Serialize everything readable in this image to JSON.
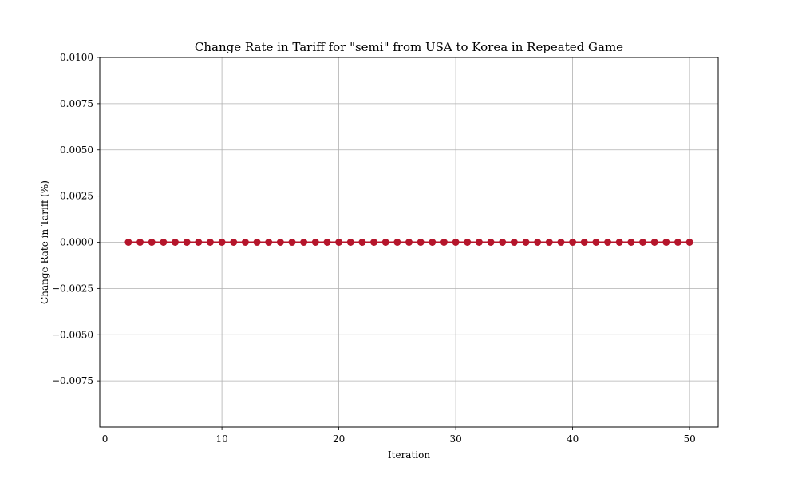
{
  "chart_data": {
    "type": "line",
    "title": "Change Rate in Tariff for \"semi\" from USA to Korea in Repeated Game",
    "xlabel": "Iteration",
    "ylabel": "Change Rate in Tariff (%)",
    "xlim": [
      -0.45,
      52.45
    ],
    "ylim": [
      -0.01,
      0.01
    ],
    "x_ticks": [
      0,
      10,
      20,
      30,
      40,
      50
    ],
    "x_tick_labels": [
      "0",
      "10",
      "20",
      "30",
      "40",
      "50"
    ],
    "y_ticks": [
      0.01,
      0.0075,
      0.005,
      0.0025,
      0.0,
      -0.0025,
      -0.005,
      -0.0075
    ],
    "y_tick_labels": [
      "0.0100",
      "0.0075",
      "0.0050",
      "0.0025",
      "0.0000",
      "−0.0025",
      "−0.0050",
      "−0.0075"
    ],
    "grid": true,
    "series": [
      {
        "color": "#b5152b",
        "marker": "circle",
        "x": [
          2,
          3,
          4,
          5,
          6,
          7,
          8,
          9,
          10,
          11,
          12,
          13,
          14,
          15,
          16,
          17,
          18,
          19,
          20,
          21,
          22,
          23,
          24,
          25,
          26,
          27,
          28,
          29,
          30,
          31,
          32,
          33,
          34,
          35,
          36,
          37,
          38,
          39,
          40,
          41,
          42,
          43,
          44,
          45,
          46,
          47,
          48,
          49,
          50
        ],
        "y": [
          0,
          0,
          0,
          0,
          0,
          0,
          0,
          0,
          0,
          0,
          0,
          0,
          0,
          0,
          0,
          0,
          0,
          0,
          0,
          0,
          0,
          0,
          0,
          0,
          0,
          0,
          0,
          0,
          0,
          0,
          0,
          0,
          0,
          0,
          0,
          0,
          0,
          0,
          0,
          0,
          0,
          0,
          0,
          0,
          0,
          0,
          0,
          0,
          0
        ]
      }
    ]
  }
}
